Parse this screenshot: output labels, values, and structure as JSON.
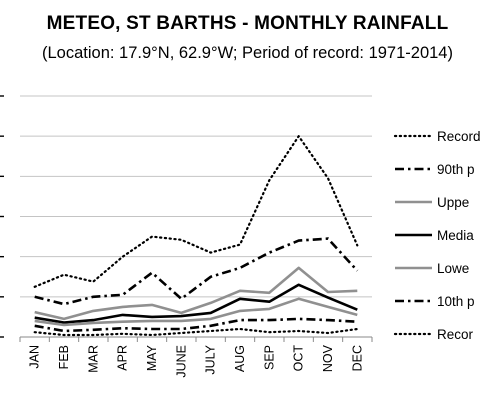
{
  "chart_data": {
    "type": "line",
    "title": "METEO, ST BARTHS - MONTHLY RAINFALL",
    "subtitle": "(Location: 17.9°N, 62.9°W; Period of record: 1971-2014)",
    "categories": [
      "JAN",
      "FEB",
      "MAR",
      "APR",
      "MAY",
      "JUNE",
      "JULY",
      "AUG",
      "SEP",
      "OCT",
      "NOV",
      "DEC"
    ],
    "ylim": [
      0,
      6
    ],
    "grid": true,
    "legend_position": "right",
    "series": [
      {
        "name": "Record",
        "style": "dotted",
        "color": "#000000",
        "width": 2.2,
        "values": [
          1.25,
          1.55,
          1.38,
          2.0,
          2.5,
          2.42,
          2.1,
          2.3,
          3.9,
          5.0,
          3.95,
          2.28
        ]
      },
      {
        "name": "90th p",
        "style": "dashdot",
        "color": "#000000",
        "width": 2.6,
        "values": [
          1.0,
          0.82,
          1.0,
          1.05,
          1.6,
          0.95,
          1.5,
          1.72,
          2.1,
          2.4,
          2.45,
          1.65
        ]
      },
      {
        "name": "Uppe",
        "style": "solid",
        "color": "#909090",
        "width": 2.6,
        "values": [
          0.62,
          0.45,
          0.65,
          0.75,
          0.8,
          0.6,
          0.85,
          1.15,
          1.1,
          1.72,
          1.12,
          1.15
        ]
      },
      {
        "name": "Media",
        "style": "solid",
        "color": "#000000",
        "width": 2.6,
        "values": [
          0.48,
          0.36,
          0.42,
          0.55,
          0.5,
          0.52,
          0.6,
          0.95,
          0.88,
          1.3,
          0.98,
          0.68
        ]
      },
      {
        "name": "Lowe",
        "style": "solid",
        "color": "#909090",
        "width": 2.6,
        "values": [
          0.4,
          0.3,
          0.35,
          0.38,
          0.4,
          0.4,
          0.45,
          0.65,
          0.7,
          0.95,
          0.75,
          0.55
        ]
      },
      {
        "name": "10th p",
        "style": "dashdot",
        "color": "#000000",
        "width": 2.6,
        "values": [
          0.28,
          0.15,
          0.18,
          0.22,
          0.2,
          0.2,
          0.28,
          0.42,
          0.42,
          0.45,
          0.42,
          0.38
        ]
      },
      {
        "name": "Recor",
        "style": "dotted",
        "color": "#000000",
        "width": 2.2,
        "values": [
          0.12,
          0.05,
          0.05,
          0.08,
          0.05,
          0.1,
          0.15,
          0.2,
          0.12,
          0.15,
          0.1,
          0.2
        ]
      }
    ]
  }
}
